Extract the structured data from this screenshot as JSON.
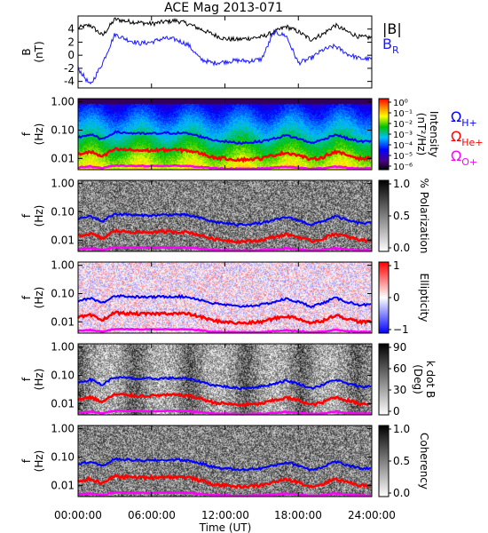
{
  "title": "ACE Mag 2013-071",
  "xlabel": "Time (UT)",
  "x_ticks": [
    "00:00:00",
    "06:00:00",
    "12:00:00",
    "18:00:00",
    "24:00:00"
  ],
  "colors": {
    "field_total": "#000000",
    "field_radial": "#1a1aff",
    "h_plus": "#0000ff",
    "he_plus": "#ff0000",
    "o_plus": "#ff00ff"
  },
  "chart_data": [
    {
      "type": "line",
      "panel": "magnetic-field",
      "ylabel_top": "B",
      "ylabel_unit": "(nT)",
      "ylim": [
        -5,
        6
      ],
      "y_ticks": [
        -4,
        -2,
        0,
        2,
        4
      ],
      "x_hours": [
        0,
        1,
        2,
        3,
        4,
        5,
        6,
        7,
        8,
        9,
        10,
        11,
        12,
        13,
        14,
        15,
        16,
        17,
        18,
        19,
        20,
        21,
        22,
        23,
        24
      ],
      "series": [
        {
          "name": "|B|",
          "values": [
            4.2,
            4.6,
            3.0,
            5.5,
            5.2,
            5.0,
            4.8,
            5.1,
            5.3,
            4.8,
            4.0,
            3.2,
            2.5,
            2.4,
            2.6,
            2.8,
            3.5,
            4.4,
            3.6,
            2.4,
            3.2,
            4.6,
            3.6,
            2.8,
            2.7
          ]
        },
        {
          "name": "B",
          "label_sub": "R",
          "values": [
            -2.0,
            -4.6,
            -1.2,
            3.2,
            2.4,
            1.8,
            2.0,
            2.6,
            2.4,
            1.6,
            -0.6,
            -1.2,
            -1.0,
            -0.8,
            -0.9,
            -0.6,
            3.5,
            3.0,
            -1.2,
            -0.5,
            0.8,
            1.4,
            0.2,
            -0.5,
            -0.6
          ]
        }
      ]
    },
    {
      "type": "heatmap",
      "panel": "power-spectrum",
      "ylabel_top": "f",
      "ylabel_unit": "(Hz)",
      "y_scale": "log",
      "ylim": [
        0.004,
        1.3
      ],
      "y_ticks": [
        "1.00",
        "0.10",
        "0.01"
      ],
      "colorbar": {
        "label": "Intensity",
        "unit": "(nT²/Hz)",
        "ticks": [
          "10⁰",
          "10⁻¹",
          "10⁻²",
          "10⁻³",
          "10⁻⁴",
          "10⁻⁵",
          "10⁻⁶"
        ],
        "palette": "rainbow"
      },
      "legend": [
        {
          "label": "Ω",
          "sub": "H+",
          "color": "#0000ff"
        },
        {
          "label": "Ω",
          "sub": "He+",
          "color": "#ff0000"
        },
        {
          "label": "Ω",
          "sub": "O+",
          "color": "#ff00ff"
        }
      ]
    },
    {
      "type": "heatmap",
      "panel": "polarization",
      "ylabel_top": "f",
      "ylabel_unit": "(Hz)",
      "y_scale": "log",
      "ylim": [
        0.004,
        1.3
      ],
      "y_ticks": [
        "1.00",
        "0.10",
        "0.01"
      ],
      "colorbar": {
        "label": "% Polarization",
        "unit": "",
        "ticks": [
          "1.0",
          "0.5",
          "0.0"
        ],
        "palette": "gray"
      }
    },
    {
      "type": "heatmap",
      "panel": "ellipticity",
      "ylabel_top": "f",
      "ylabel_unit": "(Hz)",
      "y_scale": "log",
      "ylim": [
        0.004,
        1.3
      ],
      "y_ticks": [
        "1.00",
        "0.10",
        "0.01"
      ],
      "colorbar": {
        "label": "Ellipticity",
        "unit": "",
        "ticks": [
          "1",
          "0",
          "−1"
        ],
        "palette": "bluered"
      }
    },
    {
      "type": "heatmap",
      "panel": "k-dot-b",
      "ylabel_top": "f",
      "ylabel_unit": "(Hz)",
      "y_scale": "log",
      "ylim": [
        0.004,
        1.3
      ],
      "y_ticks": [
        "1.00",
        "0.10",
        "0.01"
      ],
      "colorbar": {
        "label": "k dot B",
        "unit": "(Deg)",
        "ticks": [
          "90",
          "60",
          "30",
          "0"
        ],
        "palette": "gray"
      }
    },
    {
      "type": "heatmap",
      "panel": "coherency",
      "ylabel_top": "f",
      "ylabel_unit": "(Hz)",
      "y_scale": "log",
      "ylim": [
        0.004,
        1.3
      ],
      "y_ticks": [
        "1.00",
        "0.10",
        "0.01"
      ],
      "colorbar": {
        "label": "Coherency",
        "unit": "",
        "ticks": [
          "1.0",
          "0.5",
          "0.0"
        ],
        "palette": "gray"
      }
    }
  ],
  "gyrofrequency_hz": {
    "x_hours": [
      0,
      1,
      2,
      3,
      4,
      5,
      6,
      7,
      8,
      9,
      10,
      11,
      12,
      13,
      14,
      15,
      16,
      17,
      18,
      19,
      20,
      21,
      22,
      23,
      24
    ],
    "h_plus": [
      0.055,
      0.07,
      0.045,
      0.085,
      0.08,
      0.075,
      0.075,
      0.078,
      0.08,
      0.075,
      0.06,
      0.045,
      0.04,
      0.035,
      0.037,
      0.04,
      0.05,
      0.065,
      0.05,
      0.035,
      0.045,
      0.07,
      0.05,
      0.04,
      0.04
    ],
    "he_plus": [
      0.014,
      0.017,
      0.011,
      0.021,
      0.02,
      0.019,
      0.019,
      0.02,
      0.02,
      0.019,
      0.015,
      0.011,
      0.01,
      0.009,
      0.0093,
      0.01,
      0.013,
      0.016,
      0.013,
      0.009,
      0.011,
      0.017,
      0.013,
      0.01,
      0.01
    ],
    "o_plus": [
      0.0048,
      0.0052,
      0.0045,
      0.0056,
      0.0055,
      0.0054,
      0.0054,
      0.0055,
      0.0055,
      0.0054,
      0.005,
      0.0045,
      0.0044,
      0.0043,
      0.0043,
      0.0044,
      0.0047,
      0.0051,
      0.0047,
      0.0043,
      0.0045,
      0.0052,
      0.0047,
      0.0044,
      0.0044
    ]
  }
}
